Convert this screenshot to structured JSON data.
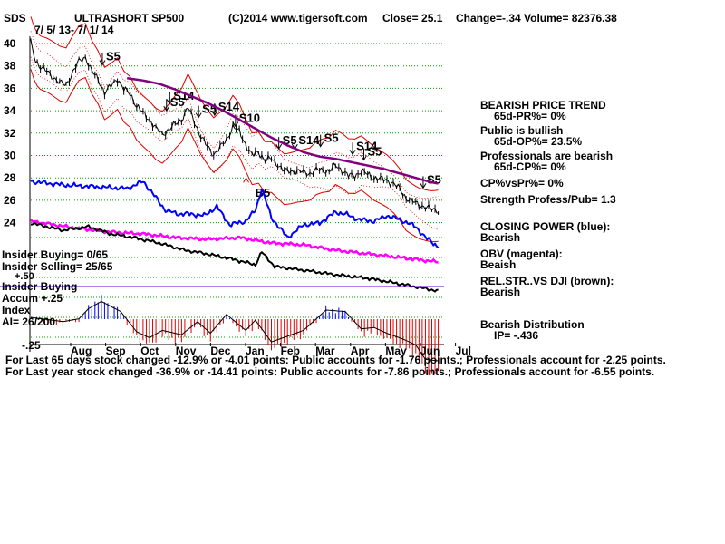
{
  "header": {
    "ticker": "SDS",
    "name": "ULTRASHORT SP500",
    "copyright": "(C)2014 www.tigersoft.com",
    "close": "Close=  25.1",
    "change": "Change=-.34",
    "volume": "Volume= 82376.38",
    "date_range": "7/ 5/ 13- 7/ 1/ 14"
  },
  "insider": {
    "buying": "Insider Buying= 0/65",
    "selling": "Insider Selling= 25/65",
    "plus50": "+.50",
    "buying2": "Insider Buying",
    "accum": "Accum",
    "plus25": "+.25",
    "index": "Index",
    "ai": "AI= 26/200",
    "minus25": "-.25"
  },
  "panel": [
    {
      "text": "BEARISH PRICE TREND",
      "indent": false
    },
    {
      "text": "65d-PR%= 0%",
      "indent": true
    },
    {
      "text": "Public is bullish",
      "indent": false
    },
    {
      "text": "65d-OP%= 23.5%",
      "indent": true
    },
    {
      "text": "Professionals are bearish",
      "indent": false
    },
    {
      "text": "65d-CP%= 0%",
      "indent": true
    },
    {
      "text": "CP%vsPr%=  0%",
      "indent": false
    },
    {
      "text": "Strength Profess/Pub= 1.3",
      "indent": false
    },
    {
      "text": "CLOSING POWER (blue):",
      "indent": false
    },
    {
      "text": "Bearish",
      "indent": false
    },
    {
      "text": "OBV (magenta):",
      "indent": false
    },
    {
      "text": "Beaish",
      "indent": false
    },
    {
      "text": "REL.STR..VS DJI (brown):",
      "indent": false
    },
    {
      "text": "Bearish",
      "indent": false
    },
    {
      "text": "Bearish Distribution",
      "indent": false
    },
    {
      "text": "IP= -.436",
      "indent": true
    }
  ],
  "footer": [
    "For Last 65 days stock changed -12.9% or -4.01 points:  Public accounts for -1.76 points.;  Professionals account for -2.25 points.",
    "For Last year stock changed -36.9% or -14.41 points:  Public accounts for -7.86 points.;  Professionals account for -6.55 points."
  ],
  "colors": {
    "price": "#000000",
    "bands": "#e00000",
    "moving_average": "#800080",
    "closing_power": "#0000ff",
    "obv": "#ff00ff",
    "rel_strength": "#000000",
    "accum_positive": "#0000ff",
    "accum_negative": "#e00000",
    "grid": "#00a000"
  },
  "chart_data": {
    "type": "line",
    "title": "ULTRASHORT SP500",
    "y_ticks": [
      24,
      26,
      28,
      30,
      32,
      34,
      36,
      38,
      40
    ],
    "ylim": [
      22.4,
      40.6
    ],
    "x_months": [
      "Aug",
      "Sep",
      "Oct",
      "Nov",
      "Dec",
      "Jan",
      "Feb",
      "Mar",
      "Apr",
      "May",
      "Jun",
      "Jul"
    ],
    "price": {
      "x": [
        0,
        3,
        6,
        10,
        14,
        18,
        22,
        26,
        30,
        34,
        38,
        42,
        46,
        50,
        54,
        58,
        62,
        66,
        70,
        74,
        78,
        82,
        86,
        90,
        94,
        98,
        102,
        106,
        110,
        114,
        118,
        122,
        126,
        130,
        134,
        138,
        142,
        146,
        150,
        154,
        158,
        162,
        166,
        170,
        174,
        178,
        182,
        186,
        190,
        194,
        198,
        202,
        206,
        210,
        214,
        218,
        222,
        226,
        230,
        234,
        238,
        242,
        246,
        250,
        254
      ],
      "values": [
        40.0,
        38.5,
        37.9,
        37.5,
        37.0,
        36.5,
        36.3,
        37.4,
        38.4,
        38.8,
        37.5,
        36.8,
        35.6,
        36.2,
        36.9,
        35.9,
        35.5,
        34.4,
        33.8,
        33.2,
        32.4,
        31.9,
        32.3,
        32.8,
        33.2,
        34.3,
        33.0,
        31.7,
        30.8,
        30.1,
        30.7,
        31.4,
        32.6,
        32.1,
        31.0,
        30.0,
        30.3,
        29.6,
        29.7,
        29.2,
        28.6,
        28.6,
        28.6,
        28.5,
        28.4,
        28.7,
        28.7,
        28.6,
        29.1,
        28.7,
        28.2,
        28.2,
        28.6,
        28.3,
        28.0,
        27.9,
        27.8,
        27.5,
        27.0,
        26.2,
        25.9,
        25.6,
        25.4,
        25.2,
        25.1
      ]
    },
    "moving_average": {
      "x": [
        60,
        70,
        80,
        90,
        100,
        110,
        120,
        130,
        140,
        150,
        160,
        170,
        180,
        190,
        200,
        210,
        220,
        230,
        240,
        250,
        254
      ],
      "values": [
        36.9,
        36.7,
        36.4,
        35.9,
        35.3,
        34.7,
        34.0,
        33.2,
        32.4,
        31.6,
        30.9,
        30.3,
        29.9,
        29.7,
        29.4,
        29.1,
        28.8,
        28.4,
        28.0,
        27.6,
        27.5
      ]
    },
    "annotations": [
      {
        "text": "S5",
        "x": 48,
        "price": 38.5
      },
      {
        "text": "S14",
        "x": 90,
        "price": 35.0
      },
      {
        "text": "S5",
        "x": 88,
        "price": 34.4
      },
      {
        "text": "S5",
        "x": 108,
        "price": 33.8
      },
      {
        "text": "S14",
        "x": 118,
        "price": 34.0
      },
      {
        "text": "S10",
        "x": 131,
        "price": 33.0
      },
      {
        "text": "S5",
        "x": 158,
        "price": 31.0
      },
      {
        "text": "S14",
        "x": 168,
        "price": 31.0
      },
      {
        "text": "S5",
        "x": 184,
        "price": 31.2
      },
      {
        "text": "S14",
        "x": 204,
        "price": 30.5
      },
      {
        "text": "S5",
        "x": 211,
        "price": 30.0
      },
      {
        "text": "S5",
        "x": 248,
        "price": 27.5
      },
      {
        "text": "B5",
        "x": 141,
        "price": 26.3
      }
    ]
  }
}
